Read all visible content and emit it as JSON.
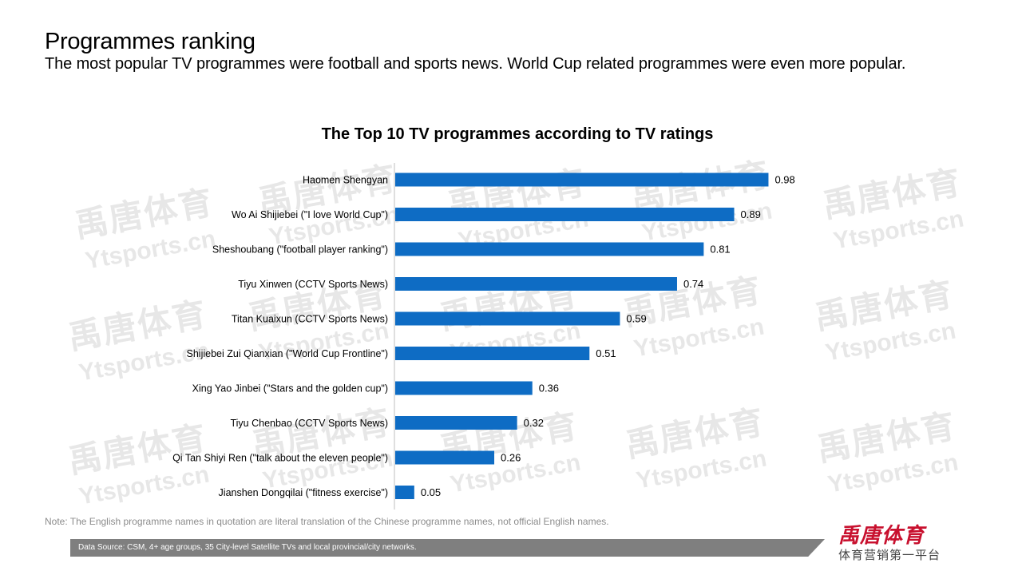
{
  "header": {
    "title": "Programmes ranking",
    "subtitle": "The most popular TV programmes were football and sports news. World Cup related programmes were even more popular."
  },
  "watermark": {
    "cn": "禹唐体育",
    "en": "Ytsports.cn"
  },
  "chart_data": {
    "type": "bar",
    "orientation": "horizontal",
    "title": "The Top 10 TV programmes according to TV ratings",
    "xlabel": "",
    "ylabel": "",
    "bar_color": "#0e6cc4",
    "grid": false,
    "legend": "none",
    "xlim": [
      0,
      1.0
    ],
    "categories": [
      "Haomen Shengyan",
      "Wo Ai Shijiebei (\"I love World Cup\")",
      "Sheshoubang (\"football player ranking\")",
      "Tiyu Xinwen (CCTV Sports News)",
      "Titan Kuaixun (CCTV Sports News)",
      "Shijiebei Zui Qianxian (\"World Cup Frontline\")",
      "Xing Yao Jinbei (\"Stars and the golden cup\")",
      "Tiyu Chenbao (CCTV Sports News)",
      "Qi Tan Shiyi Ren (\"talk about the eleven people\")",
      "Jianshen Dongqilai (\"fitness exercise\")"
    ],
    "values": [
      0.98,
      0.89,
      0.81,
      0.74,
      0.59,
      0.51,
      0.36,
      0.32,
      0.26,
      0.05
    ]
  },
  "footer": {
    "note": "Note: The English programme names in quotation are literal translation of the Chinese programme names, not official English names.",
    "source": "Data Source: CSM, 4+ age groups, 35 City-level Satellite TVs and local provincial/city networks.",
    "brand_logo": "禹唐体育",
    "brand_tagline": "体育营销第一平台",
    "brand_color": "#c8102e"
  }
}
